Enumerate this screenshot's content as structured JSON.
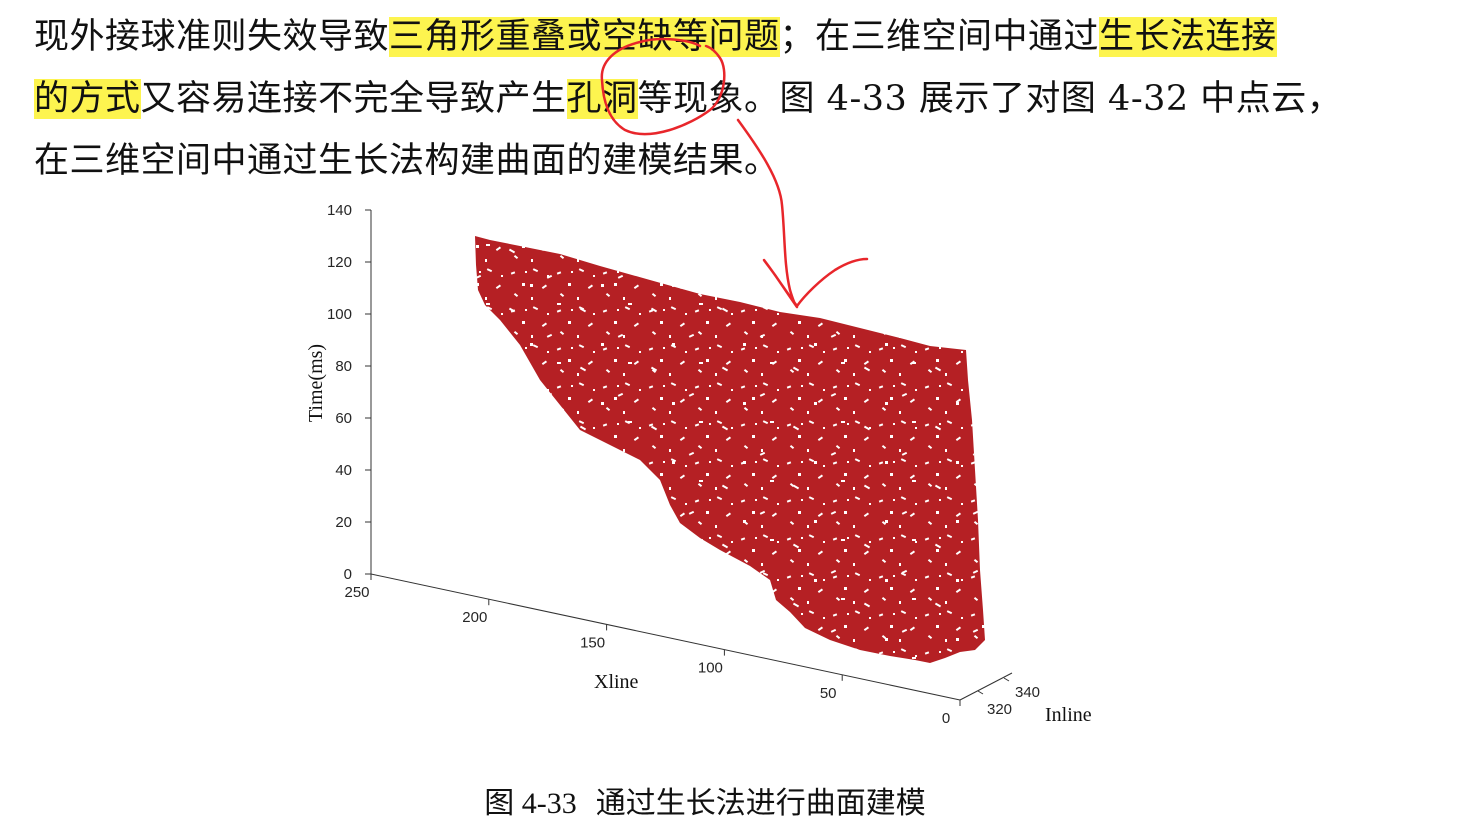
{
  "paragraph": {
    "line1": [
      {
        "text": "现外接球准则失效导致",
        "highlight": false
      },
      {
        "text": "三角形重叠或空缺等问题",
        "highlight": true
      },
      {
        "text": "；在三维空间中通过",
        "highlight": false
      },
      {
        "text": "生长法连接",
        "highlight": true
      }
    ],
    "line2": [
      {
        "text": "的方式",
        "highlight": true
      },
      {
        "text": "又容易连接不完全导致产生",
        "highlight": false
      },
      {
        "text": "孔洞",
        "highlight": true
      },
      {
        "text": "等现象。图 4-33 展示了对图 4-32 中点云，",
        "highlight": false
      }
    ],
    "line3": [
      {
        "text": "在三维空间中通过生长法构建曲面的建模结果。",
        "highlight": false
      }
    ]
  },
  "highlight_color": "#fdf44f",
  "annotation_color": "#e8262b",
  "chart_data": {
    "type": "surface-3d",
    "zlabel": "Time(ms)",
    "xlabel": "Xline",
    "ylabel": "Inline",
    "z_ticks": [
      "140",
      "120",
      "100",
      "80",
      "60",
      "40",
      "20",
      "0"
    ],
    "x_ticks": [
      "250",
      "200",
      "150",
      "100",
      "50",
      "0"
    ],
    "y_ticks": [
      "320",
      "340"
    ],
    "zlim": [
      0,
      140
    ],
    "xlim": [
      0,
      250
    ],
    "surface_color": "#b52024",
    "grid": false
  },
  "caption": {
    "label": "图 4-33",
    "text": "通过生长法进行曲面建模"
  }
}
